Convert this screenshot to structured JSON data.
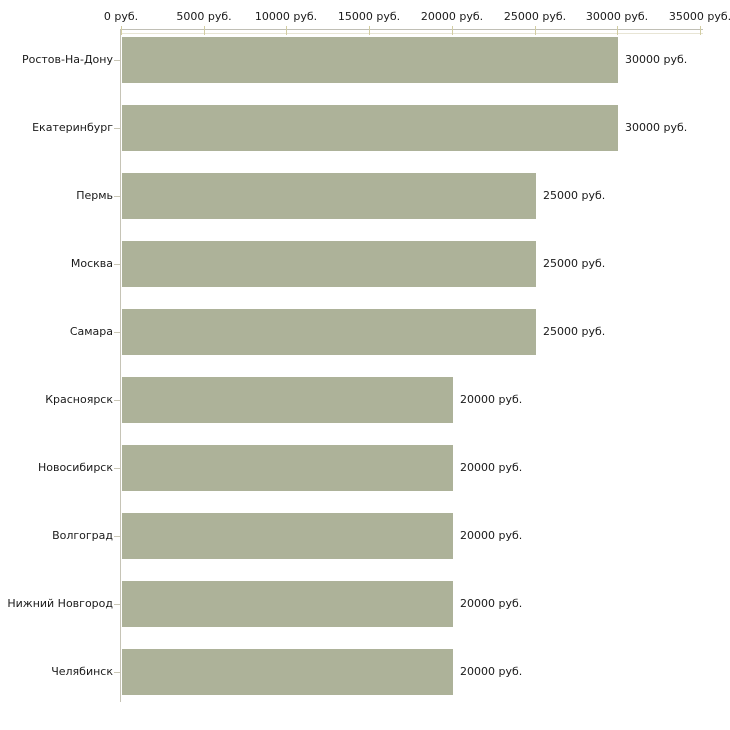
{
  "chart_data": {
    "type": "bar",
    "orientation": "horizontal",
    "title": "",
    "xlabel": "",
    "ylabel": "",
    "unit": "руб.",
    "xlim": [
      0,
      35000
    ],
    "grid": false,
    "legend": "none",
    "categories": [
      "Ростов-На-Дону",
      "Екатеринбург",
      "Пермь",
      "Москва",
      "Самара",
      "Красноярск",
      "Новосибирск",
      "Волгоград",
      "Нижний Новгород",
      "Челябинск"
    ],
    "values": [
      30000,
      30000,
      25000,
      25000,
      25000,
      20000,
      20000,
      20000,
      20000,
      20000
    ],
    "bar_labels": [
      "30000 руб.",
      "30000 руб.",
      "25000 руб.",
      "25000 руб.",
      "25000 руб.",
      "20000 руб.",
      "20000 руб.",
      "20000 руб.",
      "20000 руб.",
      "20000 руб."
    ],
    "x_tick_values": [
      0,
      5000,
      10000,
      15000,
      20000,
      25000,
      30000,
      35000
    ],
    "x_tick_labels": [
      "0 руб.",
      "5000 руб.",
      "10000 руб.",
      "15000 руб.",
      "20000 руб.",
      "25000 руб.",
      "30000 руб.",
      "35000 руб."
    ],
    "colors": {
      "bar_fill": "#adb299",
      "axis_line": "#c0bfb5",
      "axis_line_highlight": "#e8e5d5",
      "axis_line_vertical": "#c6c4b6",
      "x_tick_dash": "#d2cda2",
      "category_tick_dash": "#cac7b6",
      "text": "#1a1a1a",
      "background": "#ffffff"
    }
  }
}
